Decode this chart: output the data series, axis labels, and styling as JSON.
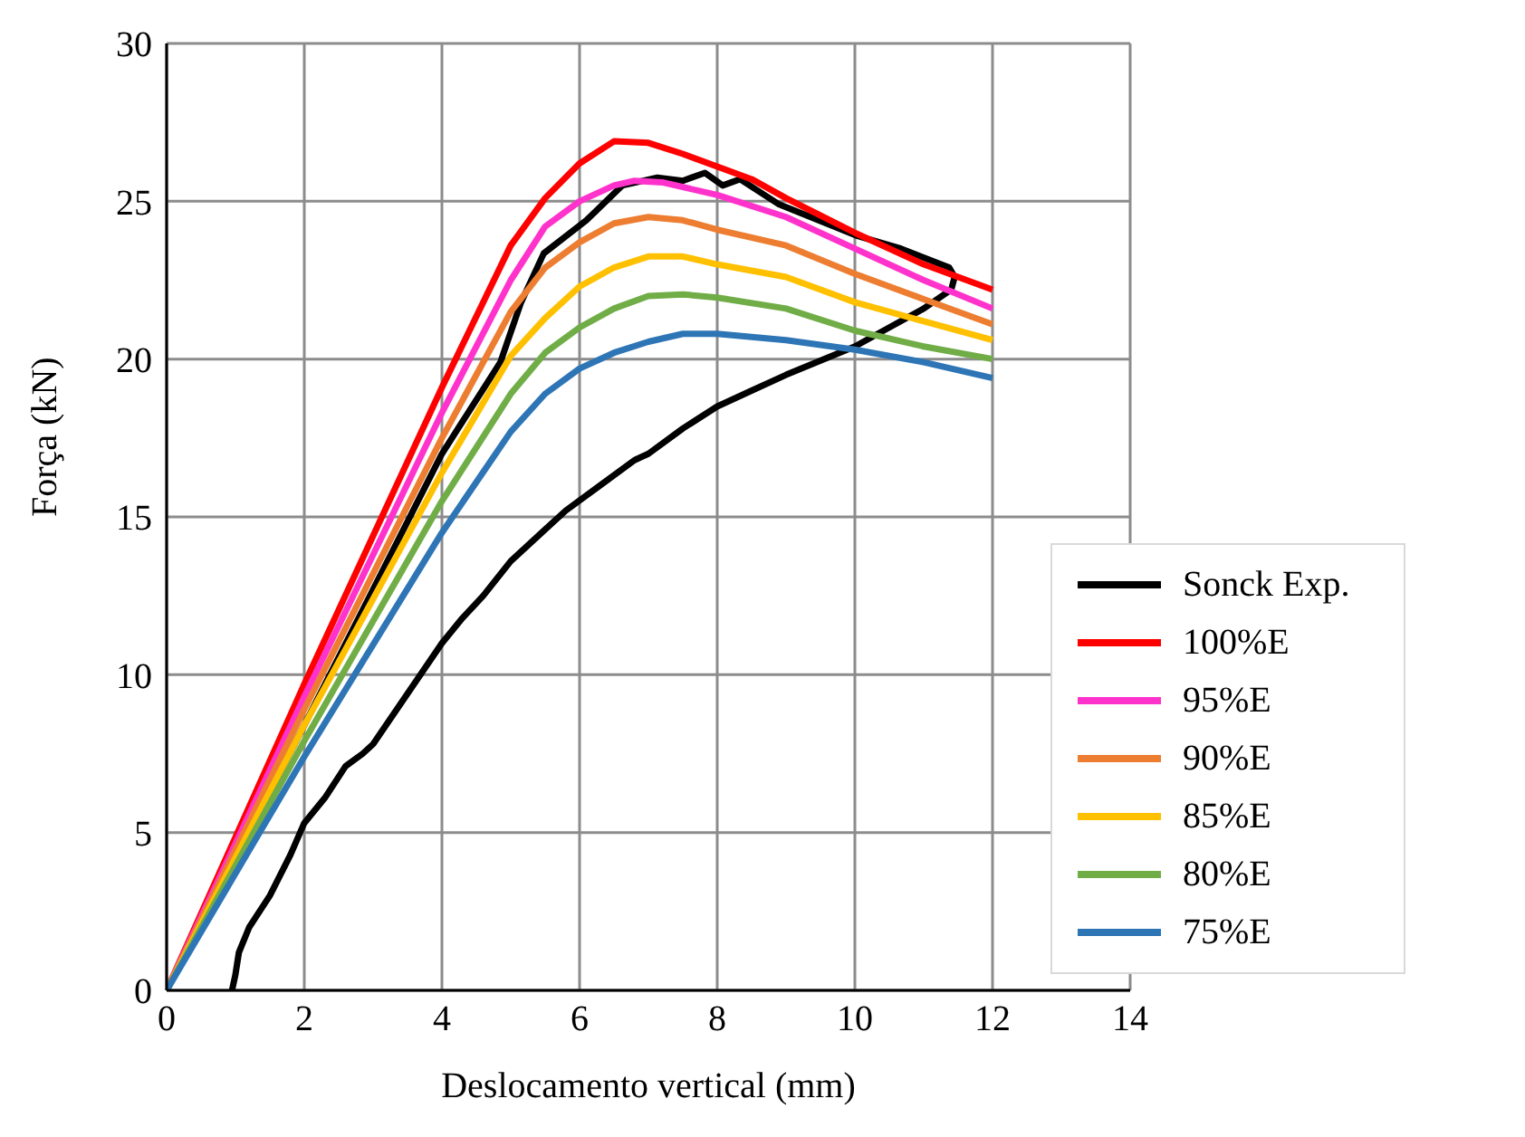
{
  "chart_data": {
    "type": "line",
    "xlabel": "Deslocamento vertical (mm)",
    "ylabel": "Força (kN)",
    "xlim": [
      0,
      14
    ],
    "xticks": [
      0,
      2,
      4,
      6,
      8,
      10,
      12,
      14
    ],
    "ylim": [
      0,
      30
    ],
    "yticks": [
      0,
      5,
      10,
      15,
      20,
      25,
      30
    ],
    "grid": true,
    "legend": "bottom right",
    "marker": "none",
    "line_style": "solid",
    "series": [
      {
        "name": "Sonck Exp.",
        "color": "#000000",
        "x": [
          0.95,
          1.0,
          1.05,
          1.2,
          1.5,
          1.8,
          2.0,
          2.3,
          2.6,
          2.85,
          3.0,
          3.5,
          4.0,
          4.3,
          4.6,
          5.0,
          5.5,
          5.8,
          6.3,
          6.8,
          7.0,
          7.5,
          8.0,
          8.5,
          9.0,
          10.0,
          10.5,
          11.0,
          11.4,
          11.45,
          11.37,
          10.67,
          10.04,
          8.9,
          8.33,
          8.08,
          7.82,
          7.5,
          7.13,
          6.62,
          6.1,
          5.48,
          5.15,
          4.85,
          4.0,
          2.0,
          0
        ],
        "values": [
          0,
          0.5,
          1.2,
          2,
          3,
          4.3,
          5.3,
          6.1,
          7.1,
          7.5,
          7.8,
          9.4,
          11,
          11.8,
          12.5,
          13.6,
          14.6,
          15.2,
          16,
          16.8,
          17,
          17.8,
          18.5,
          19,
          19.5,
          20.4,
          21,
          21.6,
          22.2,
          22.6,
          22.9,
          23.5,
          23.9,
          24.9,
          25.7,
          25.5,
          25.9,
          25.65,
          25.75,
          25.5,
          24.4,
          23.35,
          21.8,
          19.9,
          17.0,
          8.4,
          0
        ]
      },
      {
        "name": "100%E",
        "color": "#ff0000",
        "x": [
          0,
          2,
          4,
          5,
          5.5,
          6,
          6.5,
          7,
          7.5,
          8,
          8.5,
          9,
          10,
          11,
          12
        ],
        "values": [
          0,
          9.7,
          19.1,
          23.6,
          25.1,
          26.2,
          26.9,
          26.85,
          26.5,
          26.1,
          25.7,
          25.1,
          24,
          23,
          22.2
        ]
      },
      {
        "name": "95%E",
        "color": "#ff33cc",
        "x": [
          0,
          2,
          4,
          5,
          5.5,
          6,
          6.5,
          6.8,
          7.2,
          8,
          9,
          10,
          11,
          12
        ],
        "values": [
          0,
          9.3,
          18.3,
          22.5,
          24.2,
          25.0,
          25.5,
          25.65,
          25.6,
          25.2,
          24.5,
          23.5,
          22.5,
          21.6
        ]
      },
      {
        "name": "90%E",
        "color": "#ed7d31",
        "x": [
          0,
          2,
          4,
          5,
          5.5,
          6,
          6.5,
          7,
          7.5,
          8,
          9,
          10,
          11,
          12
        ],
        "values": [
          0,
          8.9,
          17.5,
          21.5,
          22.9,
          23.7,
          24.3,
          24.5,
          24.4,
          24.1,
          23.6,
          22.7,
          21.9,
          21.1
        ]
      },
      {
        "name": "85%E",
        "color": "#ffc000",
        "x": [
          0,
          2,
          4,
          5,
          5.5,
          6,
          6.5,
          7,
          7.5,
          8,
          9,
          10,
          11,
          12
        ],
        "values": [
          0,
          8.4,
          16.4,
          20.1,
          21.3,
          22.3,
          22.9,
          23.25,
          23.25,
          23.0,
          22.6,
          21.8,
          21.2,
          20.6
        ]
      },
      {
        "name": "80%E",
        "color": "#70ad47",
        "x": [
          0,
          2,
          4,
          5,
          5.5,
          6,
          6.5,
          7,
          7.5,
          8,
          9,
          10,
          11,
          12
        ],
        "values": [
          0,
          7.9,
          15.5,
          18.9,
          20.2,
          21.0,
          21.6,
          22.0,
          22.05,
          21.95,
          21.6,
          20.9,
          20.4,
          20.0
        ]
      },
      {
        "name": "75%E",
        "color": "#2e75b6",
        "x": [
          0,
          2,
          4,
          5,
          5.5,
          6,
          6.5,
          7,
          7.5,
          8,
          9,
          10,
          11,
          12
        ],
        "values": [
          0,
          7.4,
          14.5,
          17.7,
          18.9,
          19.7,
          20.2,
          20.55,
          20.8,
          20.8,
          20.6,
          20.3,
          19.9,
          19.4
        ]
      }
    ]
  }
}
